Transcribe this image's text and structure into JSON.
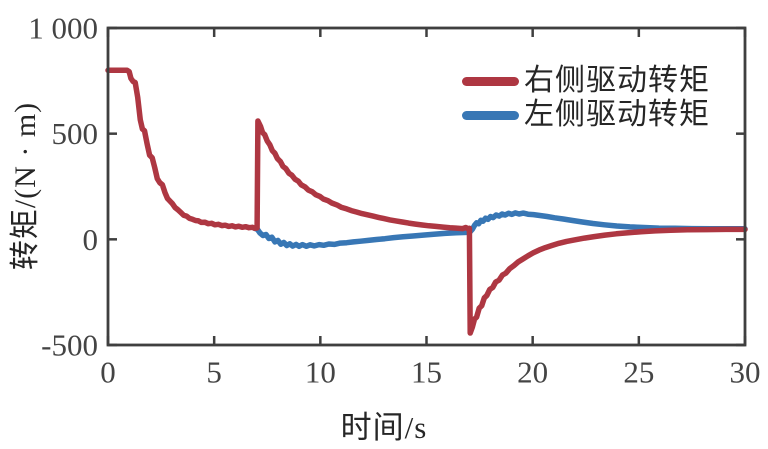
{
  "figure": {
    "background_color": "#ffffff",
    "axis_color": "#3f3f3f",
    "tick_label_color": "#444444",
    "label_color": "#262626"
  },
  "chart_data": {
    "type": "line",
    "title": "",
    "xlabel": "时间/s",
    "ylabel": "转矩/(N · m)",
    "xlim": [
      0,
      30
    ],
    "ylim": [
      -500,
      1000
    ],
    "grid": false,
    "box": true,
    "tick_direction": "in",
    "legend_position": "top-right-inside",
    "xticks": {
      "values": [
        0,
        5,
        10,
        15,
        20,
        25,
        30
      ],
      "labels": [
        "0",
        "5",
        "10",
        "15",
        "20",
        "25",
        "30"
      ]
    },
    "yticks": {
      "values": [
        -500,
        0,
        500,
        1000
      ],
      "labels": [
        "-500",
        "0",
        "500",
        "1 000"
      ]
    },
    "series": [
      {
        "name": "左侧驱动转矩",
        "color": "#3877b5",
        "line_width": 5.5,
        "points": [
          [
            6.9,
            52
          ],
          [
            7.04,
            47
          ],
          [
            7.16,
            30
          ],
          [
            7.3,
            18
          ],
          [
            7.44,
            23
          ],
          [
            7.58,
            4
          ],
          [
            7.72,
            10
          ],
          [
            7.86,
            -12
          ],
          [
            8.0,
            -5
          ],
          [
            8.14,
            -23
          ],
          [
            8.28,
            -15
          ],
          [
            8.42,
            -29
          ],
          [
            8.56,
            -21
          ],
          [
            8.7,
            -32
          ],
          [
            8.86,
            -24
          ],
          [
            9.0,
            -33
          ],
          [
            9.16,
            -25
          ],
          [
            9.34,
            -33
          ],
          [
            9.52,
            -26
          ],
          [
            9.72,
            -31
          ],
          [
            9.94,
            -25
          ],
          [
            10.16,
            -28
          ],
          [
            10.4,
            -22
          ],
          [
            10.66,
            -24
          ],
          [
            10.94,
            -18
          ],
          [
            11.24,
            -16
          ],
          [
            11.56,
            -12
          ],
          [
            11.9,
            -9
          ],
          [
            12.26,
            -5
          ],
          [
            12.64,
            -1
          ],
          [
            13.04,
            3
          ],
          [
            13.46,
            8
          ],
          [
            13.9,
            12
          ],
          [
            14.36,
            16
          ],
          [
            14.84,
            20
          ],
          [
            15.34,
            24
          ],
          [
            15.86,
            28
          ],
          [
            16.4,
            31
          ],
          [
            16.92,
            33
          ],
          [
            17.06,
            36
          ],
          [
            17.16,
            48
          ],
          [
            17.26,
            66
          ],
          [
            17.36,
            78
          ],
          [
            17.46,
            74
          ],
          [
            17.56,
            90
          ],
          [
            17.66,
            86
          ],
          [
            17.78,
            100
          ],
          [
            17.9,
            95
          ],
          [
            18.02,
            108
          ],
          [
            18.14,
            103
          ],
          [
            18.28,
            115
          ],
          [
            18.42,
            110
          ],
          [
            18.56,
            120
          ],
          [
            18.7,
            115
          ],
          [
            18.86,
            123
          ],
          [
            19.02,
            118
          ],
          [
            19.18,
            125
          ],
          [
            19.36,
            120
          ],
          [
            19.56,
            124
          ],
          [
            19.78,
            119
          ],
          [
            20.04,
            117
          ],
          [
            20.34,
            113
          ],
          [
            20.68,
            108
          ],
          [
            21.04,
            102
          ],
          [
            21.44,
            96
          ],
          [
            21.88,
            89
          ],
          [
            22.34,
            82
          ],
          [
            22.84,
            75
          ],
          [
            23.38,
            69
          ],
          [
            23.96,
            63
          ],
          [
            24.58,
            59
          ],
          [
            25.24,
            56
          ],
          [
            25.94,
            53
          ],
          [
            26.7,
            52
          ],
          [
            27.5,
            51
          ],
          [
            28.4,
            50
          ],
          [
            29.2,
            50
          ],
          [
            30.0,
            50
          ]
        ]
      },
      {
        "name": "右侧驱动转矩",
        "color": "#ae3742",
        "line_width": 5.5,
        "points": [
          [
            0.0,
            800
          ],
          [
            0.9,
            800
          ],
          [
            1.0,
            793
          ],
          [
            1.08,
            762
          ],
          [
            1.18,
            747
          ],
          [
            1.28,
            742
          ],
          [
            1.4,
            672
          ],
          [
            1.52,
            565
          ],
          [
            1.62,
            522
          ],
          [
            1.72,
            514
          ],
          [
            1.84,
            452
          ],
          [
            1.96,
            398
          ],
          [
            2.08,
            386
          ],
          [
            2.2,
            340
          ],
          [
            2.32,
            287
          ],
          [
            2.44,
            268
          ],
          [
            2.56,
            258
          ],
          [
            2.68,
            222
          ],
          [
            2.8,
            193
          ],
          [
            2.92,
            181
          ],
          [
            3.04,
            168
          ],
          [
            3.16,
            150
          ],
          [
            3.28,
            141
          ],
          [
            3.42,
            128
          ],
          [
            3.56,
            114
          ],
          [
            3.7,
            110
          ],
          [
            3.84,
            99
          ],
          [
            3.98,
            95
          ],
          [
            4.12,
            89
          ],
          [
            4.26,
            87
          ],
          [
            4.4,
            80
          ],
          [
            4.56,
            81
          ],
          [
            4.72,
            74
          ],
          [
            4.88,
            76
          ],
          [
            5.04,
            69
          ],
          [
            5.2,
            71
          ],
          [
            5.36,
            65
          ],
          [
            5.52,
            67
          ],
          [
            5.68,
            61
          ],
          [
            5.84,
            64
          ],
          [
            6.0,
            59
          ],
          [
            6.16,
            62
          ],
          [
            6.32,
            57
          ],
          [
            6.48,
            60
          ],
          [
            6.64,
            55
          ],
          [
            6.8,
            57
          ],
          [
            6.92,
            52
          ],
          [
            7.02,
            54
          ],
          [
            7.06,
            560
          ],
          [
            7.18,
            535
          ],
          [
            7.28,
            505
          ],
          [
            7.38,
            495
          ],
          [
            7.5,
            465
          ],
          [
            7.62,
            448
          ],
          [
            7.74,
            420
          ],
          [
            7.86,
            407
          ],
          [
            7.98,
            382
          ],
          [
            8.12,
            368
          ],
          [
            8.24,
            345
          ],
          [
            8.38,
            334
          ],
          [
            8.52,
            313
          ],
          [
            8.66,
            303
          ],
          [
            8.8,
            285
          ],
          [
            8.96,
            275
          ],
          [
            9.1,
            258
          ],
          [
            9.28,
            248
          ],
          [
            9.44,
            233
          ],
          [
            9.62,
            225
          ],
          [
            9.78,
            211
          ],
          [
            9.98,
            203
          ],
          [
            10.14,
            191
          ],
          [
            10.36,
            183
          ],
          [
            10.54,
            172
          ],
          [
            10.78,
            163
          ],
          [
            10.98,
            152
          ],
          [
            11.24,
            144
          ],
          [
            11.46,
            136
          ],
          [
            11.72,
            129
          ],
          [
            11.96,
            122
          ],
          [
            12.22,
            116
          ],
          [
            12.48,
            110
          ],
          [
            12.74,
            104
          ],
          [
            13.0,
            98
          ],
          [
            13.28,
            92
          ],
          [
            13.56,
            87
          ],
          [
            13.86,
            82
          ],
          [
            14.16,
            77
          ],
          [
            14.48,
            72
          ],
          [
            14.8,
            68
          ],
          [
            15.12,
            64
          ],
          [
            15.44,
            61
          ],
          [
            15.78,
            58
          ],
          [
            16.1,
            55
          ],
          [
            16.4,
            53
          ],
          [
            16.7,
            51
          ],
          [
            16.85,
            56
          ],
          [
            16.96,
            50
          ],
          [
            17.02,
            52
          ],
          [
            17.06,
            -443
          ],
          [
            17.16,
            -415
          ],
          [
            17.26,
            -378
          ],
          [
            17.36,
            -368
          ],
          [
            17.48,
            -326
          ],
          [
            17.6,
            -314
          ],
          [
            17.72,
            -277
          ],
          [
            17.84,
            -266
          ],
          [
            17.98,
            -237
          ],
          [
            18.12,
            -228
          ],
          [
            18.26,
            -202
          ],
          [
            18.42,
            -193
          ],
          [
            18.58,
            -169
          ],
          [
            18.74,
            -160
          ],
          [
            18.92,
            -139
          ],
          [
            19.12,
            -124
          ],
          [
            19.32,
            -107
          ],
          [
            19.54,
            -93
          ],
          [
            19.78,
            -78
          ],
          [
            20.02,
            -64
          ],
          [
            20.3,
            -51
          ],
          [
            20.6,
            -39
          ],
          [
            20.9,
            -29
          ],
          [
            21.24,
            -19
          ],
          [
            21.6,
            -10
          ],
          [
            22.0,
            -2
          ],
          [
            22.44,
            6
          ],
          [
            22.9,
            13
          ],
          [
            23.4,
            20
          ],
          [
            23.94,
            26
          ],
          [
            24.5,
            31
          ],
          [
            25.1,
            36
          ],
          [
            25.76,
            40
          ],
          [
            26.5,
            43
          ],
          [
            27.3,
            45
          ],
          [
            28.2,
            46
          ],
          [
            29.1,
            47
          ],
          [
            30.0,
            47
          ]
        ]
      }
    ],
    "legend_order": [
      "右侧驱动转矩",
      "左侧驱动转矩"
    ]
  },
  "legend": {
    "items": [
      {
        "label": "右侧驱动转矩",
        "color": "#ae3742"
      },
      {
        "label": "左侧驱动转矩",
        "color": "#3877b5"
      }
    ]
  }
}
